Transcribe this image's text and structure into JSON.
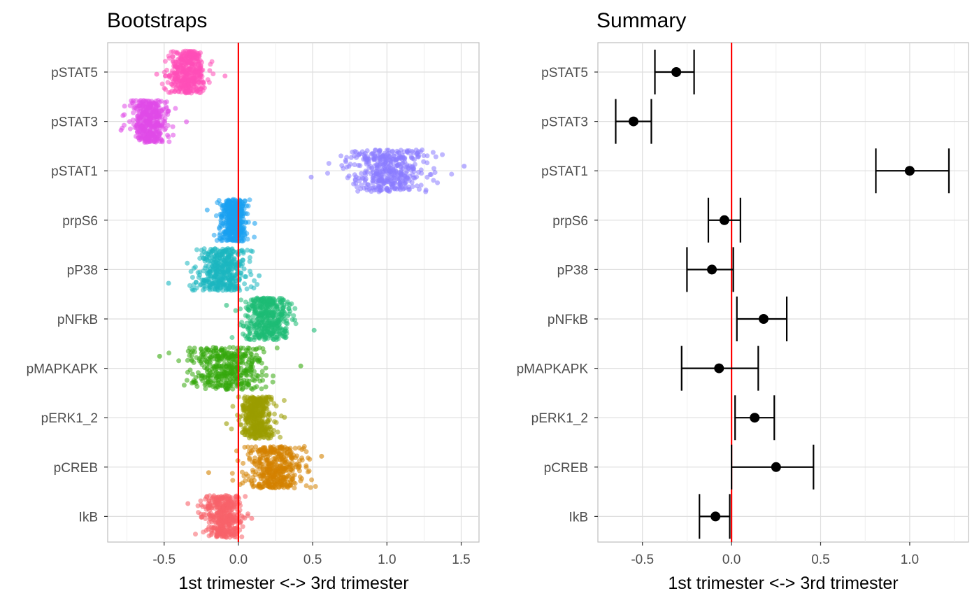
{
  "chart_data": [
    {
      "panel_id": "bootstraps",
      "type": "scatter",
      "title": "Bootstraps",
      "xlabel": "1st trimester <-> 3rd trimester",
      "ylabel": "",
      "xlim": [
        -0.88,
        1.62
      ],
      "x_ticks": [
        {
          "value": -0.5,
          "label": "-0.5"
        },
        {
          "value": 0.0,
          "label": "0.0"
        },
        {
          "value": 0.5,
          "label": "0.5"
        },
        {
          "value": 1.0,
          "label": "1.0"
        },
        {
          "value": 1.5,
          "label": "1.5"
        }
      ],
      "categories": [
        "pSTAT5",
        "pSTAT3",
        "pSTAT1",
        "prpS6",
        "pP38",
        "pNFkB",
        "pMAPKAPK",
        "pERK1_2",
        "pCREB",
        "IkB"
      ],
      "reference_line": {
        "x": 0,
        "color": "#ff0000"
      },
      "grid": true,
      "legend": "none",
      "series": [
        {
          "category": "pSTAT5",
          "color": "#FF4FB8",
          "center": -0.34,
          "min": -0.55,
          "max": -0.09
        },
        {
          "category": "pSTAT3",
          "color": "#E04BE8",
          "center": -0.6,
          "min": -0.79,
          "max": -0.35
        },
        {
          "category": "pSTAT1",
          "color": "#8B7BFF",
          "center": 1.01,
          "min": 0.49,
          "max": 1.52
        },
        {
          "category": "prpS6",
          "color": "#1AA1F0",
          "center": -0.03,
          "min": -0.21,
          "max": 0.11
        },
        {
          "category": "pP38",
          "color": "#1BB6C0",
          "center": -0.11,
          "min": -0.47,
          "max": 0.14
        },
        {
          "category": "pNFkB",
          "color": "#1DBB74",
          "center": 0.19,
          "min": -0.08,
          "max": 0.51
        },
        {
          "category": "pMAPKAPK",
          "color": "#34A80C",
          "center": -0.07,
          "min": -0.53,
          "max": 0.42
        },
        {
          "category": "pERK1_2",
          "color": "#9A9C00",
          "center": 0.12,
          "min": -0.08,
          "max": 0.31
        },
        {
          "category": "pCREB",
          "color": "#D38200",
          "center": 0.25,
          "min": -0.2,
          "max": 0.56
        },
        {
          "category": "IkB",
          "color": "#F8626A",
          "center": -0.1,
          "min": -0.34,
          "max": 0.09
        }
      ]
    },
    {
      "panel_id": "summary",
      "type": "errorbar",
      "title": "Summary",
      "xlabel": "1st trimester <-> 3rd trimester",
      "ylabel": "",
      "xlim": [
        -0.75,
        1.33
      ],
      "x_ticks": [
        {
          "value": -0.5,
          "label": "-0.5"
        },
        {
          "value": 0.0,
          "label": "0.0"
        },
        {
          "value": 0.5,
          "label": "0.5"
        },
        {
          "value": 1.0,
          "label": "1.0"
        }
      ],
      "categories": [
        "pSTAT5",
        "pSTAT3",
        "pSTAT1",
        "prpS6",
        "pP38",
        "pNFkB",
        "pMAPKAPK",
        "pERK1_2",
        "pCREB",
        "IkB"
      ],
      "reference_line": {
        "x": 0,
        "color": "#ff0000"
      },
      "grid": true,
      "legend": "none",
      "series": [
        {
          "category": "pSTAT5",
          "mean": -0.31,
          "low": -0.43,
          "high": -0.21
        },
        {
          "category": "pSTAT3",
          "mean": -0.55,
          "low": -0.65,
          "high": -0.45
        },
        {
          "category": "pSTAT1",
          "mean": 1.0,
          "low": 0.81,
          "high": 1.22
        },
        {
          "category": "prpS6",
          "mean": -0.04,
          "low": -0.13,
          "high": 0.05
        },
        {
          "category": "pP38",
          "mean": -0.11,
          "low": -0.25,
          "high": 0.01
        },
        {
          "category": "pNFkB",
          "mean": 0.18,
          "low": 0.03,
          "high": 0.31
        },
        {
          "category": "pMAPKAPK",
          "mean": -0.07,
          "low": -0.28,
          "high": 0.15
        },
        {
          "category": "pERK1_2",
          "mean": 0.13,
          "low": 0.02,
          "high": 0.24
        },
        {
          "category": "pCREB",
          "mean": 0.25,
          "low": 0.0,
          "high": 0.46
        },
        {
          "category": "IkB",
          "mean": -0.09,
          "low": -0.18,
          "high": -0.01
        }
      ]
    }
  ]
}
